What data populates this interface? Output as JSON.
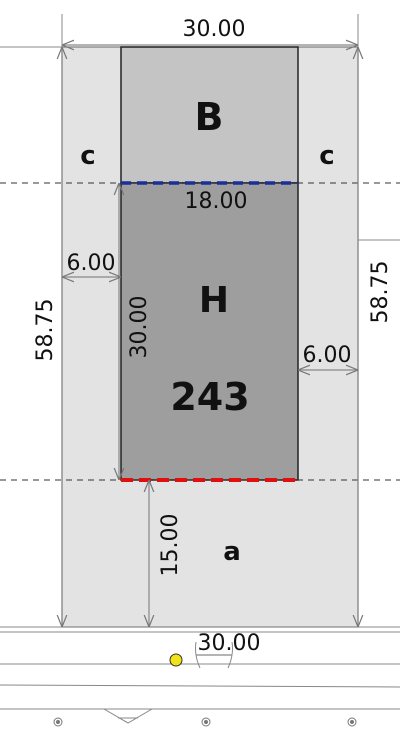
{
  "plot": {
    "zones": {
      "setback_left": "c",
      "setback_right": "c",
      "rear": "B",
      "house": "H",
      "house_number": "243",
      "front": "a"
    },
    "dimensions": {
      "top_width": "30.00",
      "house_width": "18.00",
      "house_depth": "30.00",
      "side_left": "6.00",
      "side_right": "6.00",
      "total_depth_left": "58.75",
      "total_depth_right": "58.75",
      "front_depth": "15.00",
      "street_width": "30.00"
    }
  },
  "colors": {
    "plot_fill": "#e3e3e3",
    "rear_fill": "#c4c4c4",
    "house_fill": "#9e9e9e",
    "rear_line": "#1a2f9a",
    "front_line": "#e01010",
    "marker": "#f2e21b"
  }
}
